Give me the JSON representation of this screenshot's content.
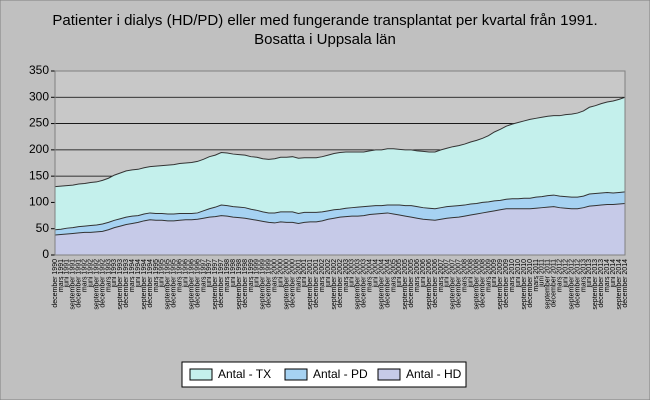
{
  "chart_data": {
    "type": "stacked_area",
    "title": "Patienter i dialys (HD/PD) eller med fungerande transplantat per kvartal från 1991.",
    "subtitle": "Bosatta i Uppsala län",
    "categories": [
      "december 1990",
      "mars 1991",
      "juni 1991",
      "september 1991",
      "december 1991",
      "mars 1992",
      "juni 1992",
      "september 1992",
      "december 1992",
      "mars 1993",
      "juni 1993",
      "september 1993",
      "december 1993",
      "mars 1994",
      "juni 1994",
      "september 1994",
      "december 1994",
      "mars 1995",
      "juni 1995",
      "september 1995",
      "december 1995",
      "mars 1996",
      "juni 1996",
      "september 1996",
      "december 1996",
      "mars 1997",
      "juni 1997",
      "september 1997",
      "december 1997",
      "mars 1998",
      "juni 1998",
      "september 1998",
      "december 1998",
      "mars 1999",
      "juni 1999",
      "september 1999",
      "december 1999",
      "mars 2000",
      "juni 2000",
      "september 2000",
      "december 2000",
      "mars 2001",
      "juni 2001",
      "september 2001",
      "december 2001",
      "mars 2002",
      "juni 2002",
      "september 2002",
      "december 2002",
      "mars 2003",
      "juni 2003",
      "september 2003",
      "december 2003",
      "mars 2004",
      "juni 2004",
      "september 2004",
      "december 2004",
      "mars 2005",
      "juni 2005",
      "september 2005",
      "december 2005",
      "mars 2006",
      "juni 2006",
      "september 2006",
      "december 2006",
      "mars 2007",
      "juni 2007",
      "september 2007",
      "december 2007",
      "mars 2008",
      "juni 2008",
      "september 2008",
      "december 2008",
      "mars 2009",
      "juni 2009",
      "september 2009",
      "december 2009",
      "mars 2010",
      "juni 2010",
      "september 2010",
      "december 2010",
      "mars 2011",
      "juni 2011",
      "september 2011",
      "december 2011",
      "mars 2012",
      "juni 2012",
      "september 2012",
      "december 2012",
      "mars 2013",
      "juni 2013",
      "september 2013",
      "december 2013",
      "mars 2014",
      "juni 2014",
      "september 2014",
      "december 2014"
    ],
    "series": [
      {
        "name": "Antal - TX",
        "color": "#c4f0ec",
        "values": [
          82,
          82,
          81,
          81,
          81,
          81,
          82,
          82,
          83,
          84,
          86,
          87,
          88,
          88,
          88,
          88,
          88,
          90,
          91,
          93,
          94,
          95,
          96,
          97,
          98,
          98,
          99,
          99,
          100,
          100,
          100,
          100,
          100,
          100,
          101,
          101,
          102,
          103,
          104,
          104,
          105,
          105,
          104,
          104,
          104,
          105,
          106,
          107,
          108,
          107,
          106,
          105,
          104,
          105,
          106,
          106,
          107,
          107,
          106,
          106,
          106,
          106,
          107,
          107,
          108,
          110,
          111,
          113,
          114,
          116,
          118,
          120,
          122,
          126,
          131,
          135,
          139,
          142,
          145,
          147,
          150,
          150,
          151,
          151,
          151,
          153,
          156,
          158,
          160,
          162,
          165,
          167,
          170,
          172,
          175,
          177,
          180
        ]
      },
      {
        "name": "Antal - PD",
        "color": "#a6d2f2",
        "values": [
          10,
          10,
          11,
          11,
          12,
          12,
          13,
          13,
          14,
          14,
          14,
          14,
          14,
          14,
          13,
          13,
          13,
          13,
          13,
          13,
          13,
          13,
          12,
          12,
          12,
          14,
          16,
          18,
          20,
          20,
          20,
          20,
          20,
          19,
          19,
          18,
          18,
          19,
          19,
          20,
          20,
          19,
          19,
          18,
          18,
          17,
          16,
          16,
          15,
          16,
          16,
          17,
          17,
          16,
          16,
          15,
          15,
          17,
          19,
          20,
          22,
          22,
          22,
          22,
          22,
          22,
          22,
          22,
          22,
          21,
          21,
          20,
          20,
          19,
          19,
          18,
          18,
          19,
          19,
          20,
          20,
          21,
          21,
          22,
          22,
          22,
          22,
          22,
          22,
          22,
          23,
          23,
          23,
          23,
          22,
          22,
          22
        ]
      },
      {
        "name": "Antal - HD",
        "color": "#c6cae8",
        "values": [
          38,
          39,
          40,
          41,
          42,
          43,
          43,
          44,
          45,
          48,
          52,
          55,
          58,
          60,
          62,
          65,
          67,
          66,
          66,
          65,
          65,
          66,
          67,
          67,
          68,
          70,
          72,
          73,
          75,
          74,
          72,
          71,
          70,
          68,
          66,
          64,
          62,
          61,
          63,
          62,
          62,
          60,
          62,
          63,
          63,
          65,
          68,
          70,
          72,
          73,
          74,
          74,
          75,
          77,
          78,
          79,
          80,
          78,
          76,
          74,
          72,
          70,
          68,
          67,
          66,
          68,
          70,
          71,
          72,
          74,
          76,
          78,
          80,
          82,
          84,
          86,
          88,
          88,
          88,
          88,
          88,
          89,
          90,
          91,
          92,
          90,
          89,
          88,
          88,
          90,
          93,
          94,
          95,
          96,
          96,
          97,
          98
        ]
      }
    ],
    "ylim": [
      0,
      350
    ],
    "yticks": [
      0,
      50,
      100,
      150,
      200,
      250,
      300,
      350
    ],
    "grid": true
  }
}
